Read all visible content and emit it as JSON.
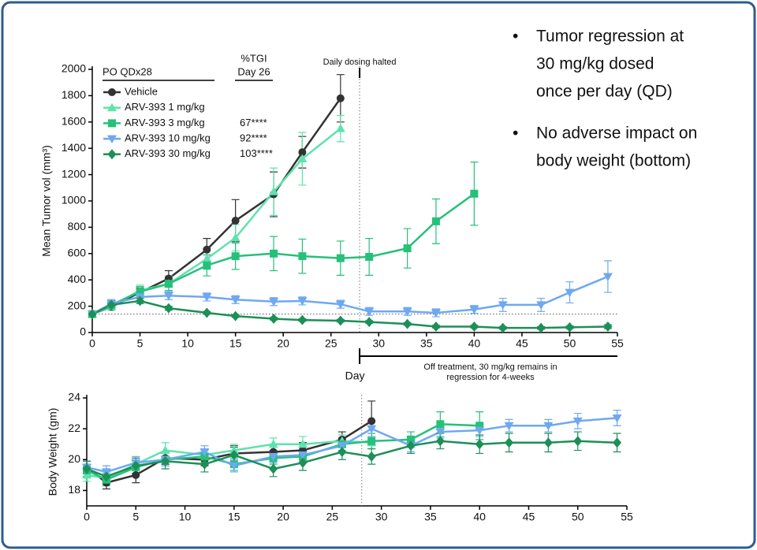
{
  "bullets": [
    [
      "Tumor regression at",
      "30 mg/kg dosed",
      "once per day (QD)"
    ],
    [
      "No adverse impact on",
      "body weight (bottom)"
    ]
  ],
  "chart_data": [
    {
      "type": "line",
      "y_label": "Mean Tumor vol (mm³)",
      "x_label": "Day",
      "legend_header": "PO QDx28",
      "tgi_header": "%TGI",
      "tgi_day": "Day 26",
      "annotation_top": "Daily dosing halted",
      "annotation_bottom": [
        "Off treatment, 30 mg/kg remains in",
        "regression for 4-weeks"
      ],
      "xlim": [
        0,
        55
      ],
      "xticks": [
        0,
        5,
        10,
        15,
        20,
        25,
        30,
        35,
        40,
        45,
        50,
        55
      ],
      "ylim": [
        0,
        2000
      ],
      "yticks": [
        0,
        200,
        400,
        600,
        800,
        1000,
        1200,
        1400,
        1600,
        1800,
        2000
      ],
      "ref_y": 140,
      "ref_x": 28,
      "series": [
        {
          "name": "Vehicle",
          "color": "#333333",
          "marker": "circle",
          "x": [
            0,
            2,
            5,
            8,
            12,
            15,
            19,
            22,
            26
          ],
          "values": [
            140,
            195,
            305,
            410,
            630,
            850,
            1050,
            1370,
            1780
          ],
          "errors": [
            15,
            20,
            35,
            60,
            85,
            160,
            170,
            120,
            180
          ]
        },
        {
          "name": "ARV-393 1 mg/kg",
          "color": "#5de3ad",
          "marker": "triangle-up",
          "x": [
            0,
            2,
            5,
            8,
            12,
            15,
            19,
            22,
            26
          ],
          "values": [
            140,
            200,
            320,
            370,
            560,
            720,
            1070,
            1320,
            1550
          ],
          "errors": [
            15,
            30,
            40,
            60,
            80,
            100,
            180,
            200,
            100
          ]
        },
        {
          "name": "ARV-393 3 mg/kg",
          "color": "#26c07a",
          "marker": "square",
          "tgi": "67****",
          "x": [
            0,
            2,
            5,
            8,
            12,
            15,
            19,
            22,
            26,
            29,
            33,
            36,
            40
          ],
          "values": [
            140,
            210,
            310,
            370,
            510,
            580,
            600,
            580,
            565,
            575,
            640,
            845,
            1055
          ],
          "errors": [
            15,
            30,
            40,
            50,
            80,
            100,
            130,
            130,
            130,
            140,
            150,
            170,
            240
          ]
        },
        {
          "name": "ARV-393 10 mg/kg",
          "color": "#6ea8f2",
          "marker": "triangle-down",
          "tgi": "92****",
          "x": [
            0,
            2,
            5,
            8,
            12,
            15,
            19,
            22,
            26,
            29,
            33,
            36,
            40,
            43,
            47,
            50,
            54
          ],
          "values": [
            140,
            220,
            270,
            280,
            270,
            250,
            235,
            240,
            215,
            160,
            160,
            150,
            175,
            210,
            210,
            305,
            425
          ],
          "errors": [
            20,
            30,
            30,
            30,
            30,
            30,
            30,
            30,
            30,
            30,
            30,
            30,
            30,
            50,
            50,
            80,
            120
          ]
        },
        {
          "name": "ARV-393 30 mg/kg",
          "color": "#1d8f58",
          "marker": "diamond",
          "tgi": "103****",
          "x": [
            0,
            2,
            5,
            8,
            12,
            15,
            19,
            22,
            26,
            29,
            33,
            36,
            40,
            43,
            47,
            50,
            54
          ],
          "values": [
            140,
            210,
            240,
            185,
            150,
            125,
            105,
            95,
            90,
            80,
            65,
            45,
            45,
            35,
            35,
            40,
            45
          ],
          "errors": [
            10,
            15,
            20,
            15,
            10,
            10,
            10,
            10,
            10,
            10,
            10,
            10,
            10,
            10,
            10,
            10,
            15
          ]
        }
      ]
    },
    {
      "type": "line",
      "y_label": "Body Weight (gm)",
      "xlim": [
        0,
        55
      ],
      "xticks": [
        0,
        5,
        10,
        15,
        20,
        25,
        30,
        35,
        40,
        45,
        50,
        55
      ],
      "ylim": [
        17,
        24
      ],
      "yticks": [
        18,
        20,
        22,
        24
      ],
      "ref_x": 28,
      "series": [
        {
          "color": "#333333",
          "marker": "circle",
          "x": [
            0,
            2,
            5,
            8,
            12,
            15,
            19,
            22,
            26,
            29
          ],
          "values": [
            19.5,
            18.5,
            19.0,
            20.1,
            20.0,
            20.4,
            20.5,
            20.6,
            21.3,
            22.5
          ],
          "errors": [
            0.4,
            0.4,
            0.5,
            0.4,
            0.4,
            0.5,
            0.5,
            0.5,
            0.5,
            1.3
          ]
        },
        {
          "color": "#5de3ad",
          "marker": "triangle-up",
          "x": [
            0,
            2,
            5,
            8,
            12,
            15,
            19,
            22,
            26,
            29
          ],
          "values": [
            19.0,
            18.8,
            19.7,
            20.6,
            20.3,
            20.6,
            21.0,
            21.0,
            21.2,
            21.1
          ],
          "errors": [
            0.4,
            0.4,
            0.4,
            0.5,
            0.4,
            0.4,
            0.4,
            0.5,
            0.4,
            0.4
          ]
        },
        {
          "color": "#26c07a",
          "marker": "square",
          "x": [
            0,
            2,
            5,
            8,
            12,
            15,
            19,
            22,
            26,
            29,
            33,
            36,
            40
          ],
          "values": [
            19.3,
            18.7,
            19.5,
            20.0,
            20.2,
            19.7,
            20.1,
            20.2,
            21.0,
            21.2,
            21.3,
            22.3,
            22.2
          ],
          "errors": [
            0.4,
            0.4,
            0.4,
            0.4,
            0.4,
            0.4,
            0.4,
            0.4,
            0.4,
            0.5,
            0.5,
            0.8,
            0.9
          ]
        },
        {
          "color": "#6ea8f2",
          "marker": "triangle-down",
          "x": [
            0,
            2,
            5,
            8,
            12,
            15,
            19,
            22,
            26,
            29,
            33,
            36,
            40,
            43,
            47,
            50,
            54
          ],
          "values": [
            19.5,
            19.2,
            19.8,
            20.0,
            20.5,
            19.6,
            20.2,
            20.3,
            20.9,
            22.0,
            20.9,
            21.8,
            21.9,
            22.2,
            22.2,
            22.5,
            22.7
          ],
          "errors": [
            0.4,
            0.4,
            0.4,
            0.4,
            0.4,
            0.4,
            0.4,
            0.4,
            0.4,
            0.5,
            0.4,
            0.4,
            0.4,
            0.4,
            0.4,
            0.5,
            0.5
          ]
        },
        {
          "color": "#1d8f58",
          "marker": "diamond",
          "x": [
            0,
            2,
            5,
            8,
            12,
            15,
            19,
            22,
            26,
            29,
            33,
            36,
            40,
            43,
            47,
            50,
            54
          ],
          "values": [
            19.4,
            18.9,
            19.6,
            19.9,
            19.7,
            20.3,
            19.4,
            19.8,
            20.5,
            20.2,
            20.9,
            21.2,
            21.0,
            21.1,
            21.1,
            21.2,
            21.1
          ],
          "errors": [
            0.5,
            0.5,
            0.5,
            0.5,
            0.5,
            0.5,
            0.5,
            0.5,
            0.5,
            0.5,
            0.5,
            0.5,
            0.6,
            0.6,
            0.6,
            0.6,
            0.6
          ]
        }
      ]
    }
  ]
}
